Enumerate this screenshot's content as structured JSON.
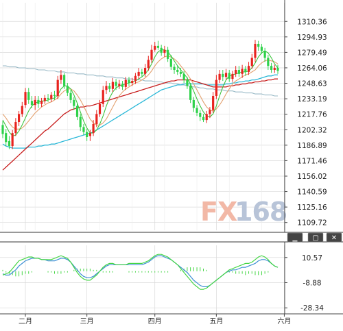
{
  "watermark": {
    "fx": "FX",
    "num": "168"
  },
  "window_controls": {
    "minimize": "▁",
    "restore": "▢",
    "close": "✕"
  },
  "colors": {
    "up": "#e8231f",
    "down": "#2fd24a",
    "ma_short": "#3ec43e",
    "ma_mid": "#e3a06e",
    "ma_long_red": "#c81e1e",
    "ma_long_cyan": "#2ab8d8",
    "ma_flat": "#98b9c6",
    "macd_line": "#3d8fd4",
    "signal_line": "#44d644",
    "grid": "#d9d9d9",
    "panel_border": "#222222",
    "watermark_fx": "#f2b8a6",
    "watermark_num": "#b8c4d8"
  },
  "chart_data": [
    {
      "type": "candlestick",
      "ylim": [
        1102,
        1329
      ],
      "y_ticks": [
        "1310.36",
        "1294.93",
        "1279.49",
        "1264.06",
        "1248.63",
        "1233.19",
        "1217.76",
        "1202.32",
        "1186.89",
        "1171.46",
        "1156.02",
        "1140.59",
        "1125.16",
        "1109.72"
      ],
      "x_labels": [
        {
          "label": "二月",
          "index": 7
        },
        {
          "label": "三月",
          "index": 26
        },
        {
          "label": "四月",
          "index": 47
        },
        {
          "label": "五月",
          "index": 66
        },
        {
          "label": "六月",
          "index": 87
        }
      ],
      "candles": [
        [
          1207,
          1198,
          1211,
          1194
        ],
        [
          1199,
          1190,
          1203,
          1186
        ],
        [
          1191,
          1186,
          1196,
          1183
        ],
        [
          1186,
          1199,
          1202,
          1183
        ],
        [
          1199,
          1210,
          1214,
          1196
        ],
        [
          1210,
          1218,
          1221,
          1206
        ],
        [
          1218,
          1226,
          1230,
          1215
        ],
        [
          1227,
          1240,
          1244,
          1224
        ],
        [
          1240,
          1232,
          1244,
          1228
        ],
        [
          1231,
          1227,
          1236,
          1224
        ],
        [
          1227,
          1232,
          1236,
          1222
        ],
        [
          1232,
          1228,
          1236,
          1224
        ],
        [
          1228,
          1231,
          1234,
          1225
        ],
        [
          1231,
          1234,
          1237,
          1228
        ],
        [
          1234,
          1233,
          1238,
          1230
        ],
        [
          1233,
          1237,
          1240,
          1230
        ],
        [
          1237,
          1236,
          1241,
          1232
        ],
        [
          1236,
          1252,
          1256,
          1233
        ],
        [
          1252,
          1257,
          1262,
          1248
        ],
        [
          1257,
          1246,
          1259,
          1243
        ],
        [
          1246,
          1239,
          1249,
          1236
        ],
        [
          1239,
          1232,
          1242,
          1229
        ],
        [
          1232,
          1226,
          1235,
          1222
        ],
        [
          1226,
          1215,
          1229,
          1212
        ],
        [
          1215,
          1205,
          1218,
          1201
        ],
        [
          1205,
          1200,
          1208,
          1197
        ],
        [
          1200,
          1195,
          1203,
          1191
        ],
        [
          1196,
          1199,
          1202,
          1191
        ],
        [
          1199,
          1208,
          1212,
          1196
        ],
        [
          1208,
          1218,
          1222,
          1205
        ],
        [
          1218,
          1228,
          1232,
          1215
        ],
        [
          1228,
          1242,
          1246,
          1225
        ],
        [
          1242,
          1246,
          1251,
          1238
        ],
        [
          1246,
          1243,
          1249,
          1240
        ],
        [
          1243,
          1250,
          1254,
          1240
        ],
        [
          1250,
          1246,
          1253,
          1242
        ],
        [
          1246,
          1248,
          1252,
          1243
        ],
        [
          1248,
          1245,
          1251,
          1242
        ],
        [
          1245,
          1252,
          1255,
          1242
        ],
        [
          1252,
          1249,
          1255,
          1246
        ],
        [
          1249,
          1251,
          1254,
          1246
        ],
        [
          1251,
          1256,
          1259,
          1248
        ],
        [
          1256,
          1260,
          1264,
          1253
        ],
        [
          1260,
          1258,
          1263,
          1255
        ],
        [
          1258,
          1264,
          1268,
          1255
        ],
        [
          1264,
          1272,
          1276,
          1261
        ],
        [
          1272,
          1282,
          1287,
          1269
        ],
        [
          1282,
          1286,
          1290,
          1280
        ],
        [
          1286,
          1284,
          1291,
          1282
        ],
        [
          1284,
          1279,
          1287,
          1276
        ],
        [
          1279,
          1282,
          1286,
          1275
        ],
        [
          1282,
          1273,
          1285,
          1270
        ],
        [
          1273,
          1265,
          1277,
          1262
        ],
        [
          1265,
          1262,
          1268,
          1258
        ],
        [
          1262,
          1260,
          1266,
          1257
        ],
        [
          1260,
          1258,
          1264,
          1255
        ],
        [
          1258,
          1252,
          1261,
          1249
        ],
        [
          1252,
          1246,
          1255,
          1243
        ],
        [
          1246,
          1232,
          1249,
          1229
        ],
        [
          1232,
          1224,
          1235,
          1220
        ],
        [
          1224,
          1219,
          1227,
          1216
        ],
        [
          1219,
          1215,
          1222,
          1211
        ],
        [
          1215,
          1212,
          1218,
          1210
        ],
        [
          1212,
          1218,
          1221,
          1209
        ],
        [
          1218,
          1222,
          1225,
          1214
        ],
        [
          1222,
          1236,
          1240,
          1219
        ],
        [
          1236,
          1252,
          1257,
          1233
        ],
        [
          1252,
          1258,
          1262,
          1249
        ],
        [
          1258,
          1255,
          1262,
          1251
        ],
        [
          1255,
          1259,
          1263,
          1252
        ],
        [
          1259,
          1253,
          1262,
          1250
        ],
        [
          1253,
          1258,
          1261,
          1250
        ],
        [
          1258,
          1262,
          1266,
          1255
        ],
        [
          1262,
          1258,
          1266,
          1255
        ],
        [
          1258,
          1263,
          1267,
          1254
        ],
        [
          1263,
          1260,
          1266,
          1256
        ],
        [
          1260,
          1266,
          1270,
          1257
        ],
        [
          1266,
          1274,
          1278,
          1263
        ],
        [
          1274,
          1288,
          1292,
          1270
        ],
        [
          1288,
          1285,
          1291,
          1281
        ],
        [
          1285,
          1281,
          1288,
          1278
        ],
        [
          1281,
          1274,
          1284,
          1270
        ],
        [
          1274,
          1266,
          1277,
          1262
        ],
        [
          1266,
          1262,
          1269,
          1259
        ],
        [
          1262,
          1264,
          1267,
          1259
        ],
        [
          1264,
          1261,
          1267,
          1258
        ]
      ],
      "ma_short": [
        1212,
        1206,
        1200,
        1196,
        1197,
        1201,
        1207,
        1214,
        1221,
        1226,
        1229,
        1230,
        1231,
        1231,
        1232,
        1233,
        1234,
        1237,
        1243,
        1246,
        1246,
        1243,
        1237,
        1229,
        1220,
        1211,
        1204,
        1199,
        1199,
        1202,
        1208,
        1216,
        1226,
        1234,
        1240,
        1244,
        1246,
        1247,
        1248,
        1249,
        1250,
        1251,
        1253,
        1255,
        1258,
        1262,
        1268,
        1275,
        1280,
        1282,
        1282,
        1280,
        1276,
        1271,
        1266,
        1262,
        1258,
        1254,
        1248,
        1241,
        1233,
        1226,
        1220,
        1216,
        1215,
        1218,
        1226,
        1236,
        1245,
        1252,
        1256,
        1257,
        1258,
        1259,
        1260,
        1260,
        1261,
        1264,
        1269,
        1275,
        1279,
        1281,
        1279,
        1274,
        1268,
        1264
      ],
      "ma_mid": [
        1218,
        1214,
        1209,
        1205,
        1203,
        1203,
        1204,
        1207,
        1211,
        1215,
        1219,
        1222,
        1225,
        1227,
        1229,
        1230,
        1232,
        1234,
        1238,
        1241,
        1243,
        1243,
        1241,
        1237,
        1232,
        1226,
        1219,
        1213,
        1209,
        1207,
        1207,
        1209,
        1213,
        1219,
        1225,
        1231,
        1236,
        1240,
        1243,
        1245,
        1247,
        1249,
        1250,
        1252,
        1254,
        1257,
        1261,
        1266,
        1270,
        1273,
        1275,
        1276,
        1275,
        1273,
        1270,
        1266,
        1262,
        1258,
        1253,
        1248,
        1242,
        1236,
        1230,
        1225,
        1222,
        1221,
        1223,
        1227,
        1232,
        1238,
        1243,
        1248,
        1251,
        1253,
        1255,
        1257,
        1258,
        1260,
        1262,
        1266,
        1269,
        1271,
        1272,
        1271,
        1270,
        1268
      ],
      "ma_long_red": [
        1162,
        1165,
        1168,
        1171,
        1174,
        1177,
        1180,
        1183,
        1186,
        1189,
        1192,
        1195,
        1198,
        1201,
        1203,
        1206,
        1209,
        1212,
        1215,
        1218,
        1220,
        1222,
        1223,
        1224,
        1225,
        1225,
        1226,
        1226,
        1227,
        1228,
        1229,
        1230,
        1231,
        1232,
        1233,
        1234,
        1235,
        1236,
        1237,
        1238,
        1239,
        1240,
        1241,
        1242,
        1243,
        1244,
        1245,
        1246,
        1247,
        1248,
        1249,
        1250,
        1251,
        1251,
        1252,
        1252,
        1252,
        1252,
        1252,
        1251,
        1250,
        1249,
        1248,
        1247,
        1246,
        1245,
        1245,
        1245,
        1245,
        1245,
        1246,
        1246,
        1247,
        1247,
        1248,
        1248,
        1249,
        1249,
        1250,
        1250,
        1251,
        1251,
        1252,
        1252,
        1253,
        1253
      ],
      "ma_long_cyan": [
        1188,
        1186,
        1185,
        1184,
        1184,
        1184,
        1184,
        1184,
        1185,
        1185,
        1185,
        1186,
        1186,
        1187,
        1187,
        1188,
        1188,
        1189,
        1190,
        1191,
        1192,
        1193,
        1194,
        1195,
        1196,
        1197,
        1198,
        1199,
        1200,
        1202,
        1204,
        1206,
        1208,
        1210,
        1212,
        1214,
        1216,
        1218,
        1220,
        1222,
        1224,
        1226,
        1228,
        1230,
        1232,
        1234,
        1236,
        1238,
        1240,
        1242,
        1243,
        1244,
        1245,
        1246,
        1247,
        1247,
        1248,
        1248,
        1248,
        1248,
        1248,
        1248,
        1248,
        1247,
        1247,
        1247,
        1247,
        1247,
        1247,
        1248,
        1248,
        1249,
        1249,
        1250,
        1250,
        1251,
        1251,
        1252,
        1252,
        1253,
        1254,
        1255,
        1256,
        1256,
        1257,
        1257
      ],
      "ma_flat": [
        1266,
        1266,
        1265,
        1265,
        1265,
        1264,
        1264,
        1264,
        1263,
        1263,
        1263,
        1262,
        1262,
        1262,
        1261,
        1261,
        1261,
        1260,
        1260,
        1260,
        1259,
        1259,
        1259,
        1258,
        1258,
        1258,
        1257,
        1257,
        1257,
        1256,
        1256,
        1256,
        1255,
        1255,
        1255,
        1254,
        1254,
        1254,
        1253,
        1253,
        1253,
        1252,
        1252,
        1252,
        1251,
        1251,
        1251,
        1250,
        1250,
        1250,
        1249,
        1249,
        1249,
        1248,
        1248,
        1247,
        1247,
        1246,
        1246,
        1245,
        1245,
        1244,
        1244,
        1243,
        1243,
        1243,
        1242,
        1242,
        1242,
        1241,
        1241,
        1241,
        1240,
        1240,
        1240,
        1239,
        1239,
        1239,
        1238,
        1238,
        1238,
        1237,
        1237,
        1237,
        1236,
        1236
      ]
    },
    {
      "type": "macd",
      "ylim": [
        -33,
        20
      ],
      "y_ticks": [
        "10.57",
        "-8.88",
        "-28.34"
      ],
      "macd": [
        -2,
        -3,
        -3,
        -1,
        1,
        4,
        6,
        8,
        9,
        10,
        10,
        10,
        9,
        9,
        8,
        8,
        8,
        9,
        10,
        10,
        9,
        7,
        4,
        1,
        -2,
        -4,
        -5,
        -5,
        -4,
        -2,
        0,
        2,
        4,
        5,
        5,
        5,
        5,
        5,
        5,
        5,
        5,
        5,
        5,
        5,
        6,
        7,
        9,
        11,
        12,
        12,
        11,
        10,
        9,
        7,
        5,
        3,
        1,
        -1,
        -4,
        -7,
        -9,
        -11,
        -12,
        -12,
        -11,
        -9,
        -7,
        -5,
        -3,
        -1,
        0,
        1,
        1,
        2,
        3,
        3,
        4,
        5,
        6,
        8,
        9,
        9,
        8,
        6,
        4,
        3
      ],
      "signal": [
        -3,
        -2,
        -1,
        2,
        5,
        8,
        9,
        10,
        11,
        11,
        10,
        10,
        9,
        9,
        9,
        9,
        10,
        11,
        12,
        11,
        10,
        7,
        3,
        -1,
        -4,
        -6,
        -7,
        -7,
        -5,
        -3,
        0,
        3,
        5,
        6,
        6,
        5,
        5,
        5,
        5,
        6,
        6,
        6,
        6,
        6,
        7,
        8,
        10,
        12,
        13,
        13,
        12,
        11,
        9,
        7,
        5,
        2,
        -1,
        -4,
        -7,
        -10,
        -12,
        -14,
        -14,
        -13,
        -11,
        -9,
        -7,
        -5,
        -3,
        -1,
        1,
        2,
        3,
        4,
        5,
        6,
        6,
        7,
        9,
        11,
        12,
        11,
        9,
        6,
        4,
        3
      ],
      "hist": [
        1,
        -1,
        -2,
        -3,
        -4,
        -4,
        -3,
        -2,
        -2,
        -1,
        0,
        0,
        0,
        0,
        -1,
        -1,
        -2,
        -2,
        -2,
        -1,
        -1,
        0,
        1,
        2,
        2,
        2,
        2,
        2,
        1,
        1,
        0,
        -1,
        -1,
        -1,
        -1,
        0,
        0,
        0,
        0,
        -1,
        -1,
        -1,
        -1,
        -1,
        -1,
        -1,
        -1,
        -1,
        -1,
        -1,
        -1,
        -1,
        0,
        0,
        0,
        1,
        2,
        3,
        3,
        3,
        3,
        3,
        2,
        1,
        0,
        0,
        0,
        0,
        0,
        0,
        -1,
        -1,
        -2,
        -2,
        -2,
        -3,
        -2,
        -2,
        -3,
        -3,
        -3,
        -2,
        -1,
        0,
        0,
        0
      ]
    }
  ]
}
